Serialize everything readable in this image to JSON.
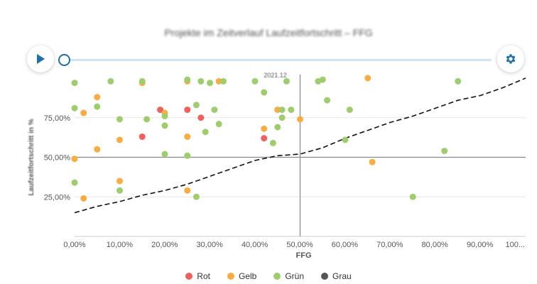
{
  "page": {
    "title": "Projekte im Zeitverlauf Laufzeitfortschritt – FFG"
  },
  "controls": {
    "play_icon": "play-icon",
    "settings_icon": "gear-icon",
    "accent": "#1f6fa8"
  },
  "chart_data": {
    "type": "scatter",
    "xlabel": "FFG",
    "ylabel": "Laufzeitfortschritt in %",
    "date_label": "2021.12",
    "xlim": [
      0,
      100
    ],
    "ylim": [
      0,
      100
    ],
    "xticks": [
      "0,00%",
      "10,00%",
      "20,00%",
      "30,00%",
      "40,00%",
      "50,00%",
      "60,00%",
      "70,00%",
      "80,00%",
      "90,00%",
      "100..."
    ],
    "yticks": [
      {
        "value": 25,
        "label": "25,00%"
      },
      {
        "value": 50,
        "label": "50,00%"
      },
      {
        "value": 75,
        "label": "75,00%"
      }
    ],
    "crosshair": {
      "x": 50,
      "y": 50
    },
    "legend": [
      {
        "name": "Rot",
        "color": "#f0605d"
      },
      {
        "name": "Gelb",
        "color": "#f9ac42"
      },
      {
        "name": "Grün",
        "color": "#9dcd6c"
      },
      {
        "name": "Grau",
        "color": "#555555"
      }
    ],
    "series": [
      {
        "name": "Rot",
        "color": "#f0605d",
        "points": [
          [
            15,
            63
          ],
          [
            19,
            80
          ],
          [
            25,
            80
          ],
          [
            28,
            75
          ],
          [
            42,
            62
          ]
        ]
      },
      {
        "name": "Gelb",
        "color": "#f9ac42",
        "points": [
          [
            0,
            49
          ],
          [
            2,
            24
          ],
          [
            2,
            78
          ],
          [
            5,
            88
          ],
          [
            5,
            55
          ],
          [
            10,
            61
          ],
          [
            10,
            35
          ],
          [
            15,
            97
          ],
          [
            20,
            78
          ],
          [
            25,
            98
          ],
          [
            25,
            63
          ],
          [
            25,
            29
          ],
          [
            32,
            98
          ],
          [
            42,
            68
          ],
          [
            45,
            80
          ],
          [
            50,
            74
          ],
          [
            65,
            100
          ],
          [
            66,
            47
          ]
        ]
      },
      {
        "name": "Grün",
        "color": "#9dcd6c",
        "points": [
          [
            0,
            97
          ],
          [
            0,
            81
          ],
          [
            0,
            34
          ],
          [
            5,
            82
          ],
          [
            8,
            98
          ],
          [
            10,
            74
          ],
          [
            10,
            29
          ],
          [
            15,
            98
          ],
          [
            16,
            74
          ],
          [
            20,
            76
          ],
          [
            20,
            70
          ],
          [
            20,
            52
          ],
          [
            25,
            99
          ],
          [
            25,
            51
          ],
          [
            27,
            83
          ],
          [
            27,
            25
          ],
          [
            28,
            98
          ],
          [
            29,
            66
          ],
          [
            30,
            97
          ],
          [
            31,
            80
          ],
          [
            32,
            71
          ],
          [
            33,
            98
          ],
          [
            40,
            98
          ],
          [
            42,
            91
          ],
          [
            44,
            59
          ],
          [
            45,
            69
          ],
          [
            46,
            80
          ],
          [
            46,
            75
          ],
          [
            47,
            98
          ],
          [
            48,
            80
          ],
          [
            54,
            98
          ],
          [
            55,
            99
          ],
          [
            56,
            86
          ],
          [
            60,
            61
          ],
          [
            61,
            80
          ],
          [
            75,
            25
          ],
          [
            82,
            54
          ],
          [
            85,
            98
          ]
        ]
      },
      {
        "name": "Grau",
        "color": "#555555",
        "points": []
      }
    ],
    "trend": [
      [
        0,
        15
      ],
      [
        5,
        19
      ],
      [
        10,
        22
      ],
      [
        15,
        26
      ],
      [
        20,
        29
      ],
      [
        25,
        33
      ],
      [
        30,
        38
      ],
      [
        35,
        43
      ],
      [
        40,
        48
      ],
      [
        45,
        51
      ],
      [
        50,
        52
      ],
      [
        55,
        56
      ],
      [
        60,
        62
      ],
      [
        65,
        67
      ],
      [
        70,
        72
      ],
      [
        75,
        76
      ],
      [
        80,
        81
      ],
      [
        85,
        86
      ],
      [
        90,
        89
      ],
      [
        95,
        94
      ],
      [
        100,
        100
      ]
    ]
  }
}
